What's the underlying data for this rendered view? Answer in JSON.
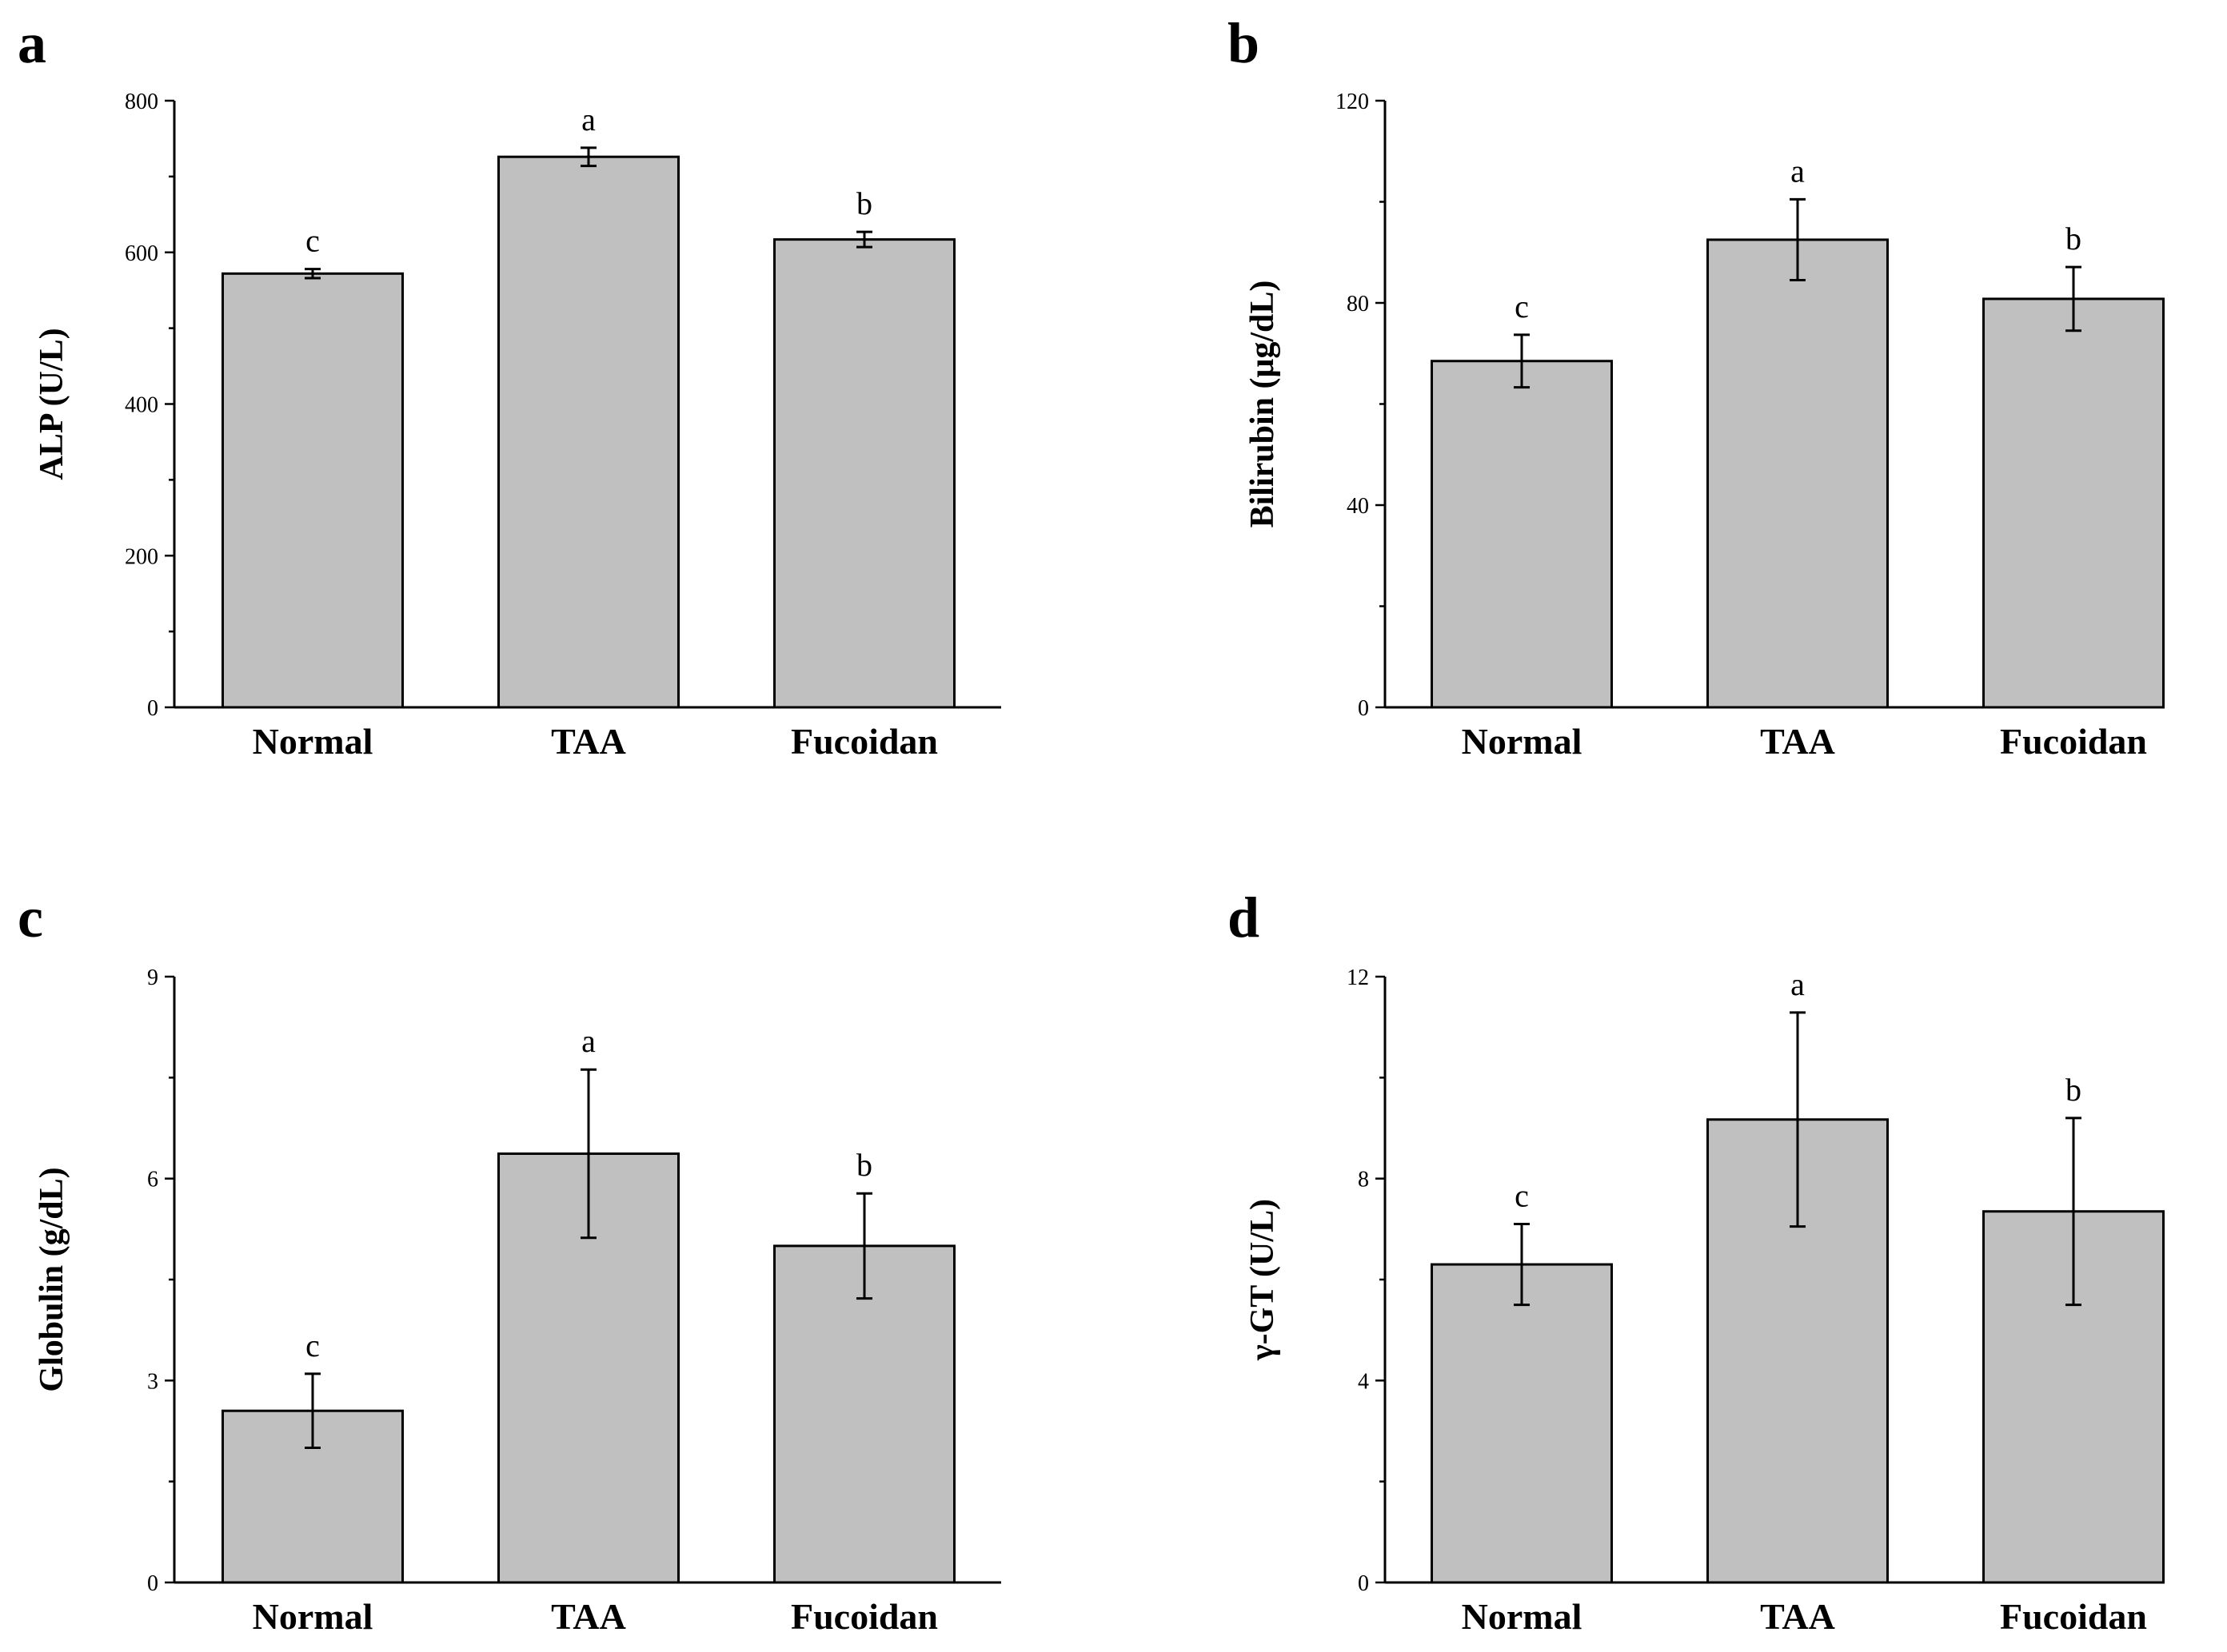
{
  "chart_data": [
    {
      "panel": "a",
      "type": "bar",
      "categories": [
        "Normal",
        "TAA",
        "Fucoidan"
      ],
      "values": [
        572,
        726,
        617
      ],
      "errors": [
        6,
        12,
        10
      ],
      "significance": [
        "c",
        "a",
        "b"
      ],
      "ylabel": "ALP (U/L)",
      "xlabel": "",
      "ylim": [
        0,
        800
      ],
      "yticks": [
        0,
        200,
        400,
        600,
        800
      ],
      "tick_labels": [
        "0",
        "200",
        "400",
        "600",
        "800"
      ],
      "minor_ticks": true
    },
    {
      "panel": "b",
      "type": "bar",
      "categories": [
        "Normal",
        "TAA",
        "Fucoidan"
      ],
      "values": [
        68.5,
        92.5,
        80.8
      ],
      "errors": [
        5.2,
        8,
        6.3
      ],
      "significance": [
        "c",
        "a",
        "b"
      ],
      "ylabel": "Bilirubin (μg/dL)",
      "xlabel": "",
      "ylim": [
        0,
        120
      ],
      "yticks": [
        0,
        40,
        80,
        120
      ],
      "tick_labels": [
        "0",
        "40",
        "80",
        "120"
      ],
      "minor_ticks": true
    },
    {
      "panel": "c",
      "type": "bar",
      "categories": [
        "Normal",
        "TAA",
        "Fucoidan"
      ],
      "values": [
        2.55,
        6.37,
        5.0
      ],
      "errors": [
        0.55,
        1.25,
        0.78
      ],
      "significance": [
        "c",
        "a",
        "b"
      ],
      "ylabel": "Globulin (g/dL)",
      "xlabel": "",
      "ylim": [
        0,
        9
      ],
      "yticks": [
        0,
        3,
        6,
        9
      ],
      "tick_labels": [
        "0",
        "3",
        "6",
        "9"
      ],
      "minor_ticks": true
    },
    {
      "panel": "d",
      "type": "bar",
      "categories": [
        "Normal",
        "TAA",
        "Fucoidan"
      ],
      "values": [
        6.3,
        9.17,
        7.35
      ],
      "errors": [
        0.8,
        2.12,
        1.85
      ],
      "significance": [
        "c",
        "a",
        "b"
      ],
      "ylabel": "γ-GT (U/L)",
      "xlabel": "",
      "ylim": [
        0,
        12
      ],
      "yticks": [
        0,
        4,
        8,
        12
      ],
      "tick_labels": [
        "0",
        "4",
        "8",
        "12"
      ],
      "minor_ticks": true
    }
  ]
}
